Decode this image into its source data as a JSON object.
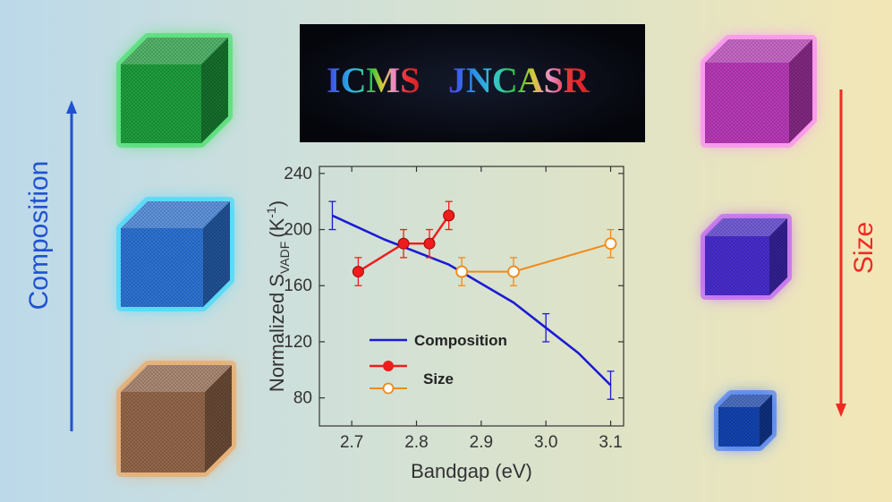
{
  "banner": {
    "text_left": "ICMS",
    "text_right": "JNCASR"
  },
  "side_labels": {
    "left": "Composition",
    "right": "Size"
  },
  "cube_colors": {
    "left": [
      "#1fa540",
      "#2f78dd",
      "#9a6b4e"
    ],
    "right": [
      "#c13cc0",
      "#4c2fd6",
      "#1446b8"
    ],
    "left_glow": [
      "#35e05a",
      "#30d8ff",
      "#f0a050"
    ],
    "right_glow": [
      "#ff7cff",
      "#b84cff",
      "#2b6cff"
    ]
  },
  "colors": {
    "composition": "#1b1bd4",
    "size": "#ee1c1c",
    "size_gap": "#f08a1c",
    "left_arrow": "#1f52d0",
    "right_arrow": "#ee2b22"
  },
  "chart_data": {
    "type": "line",
    "xlabel": "Bandgap (eV)",
    "ylabel_main": "Normalized S",
    "ylabel_sub": "VADF",
    "ylabel_unit": "(K",
    "ylabel_sup": "-1",
    "ylabel_close": ")",
    "xlim": [
      2.65,
      3.12
    ],
    "ylim": [
      60,
      245
    ],
    "xticks": [
      2.7,
      2.8,
      2.9,
      3.0,
      3.1
    ],
    "xtick_labels": [
      "2.7",
      "2.8",
      "2.9",
      "3.0",
      "3.1"
    ],
    "yticks": [
      80,
      120,
      160,
      200,
      240
    ],
    "ytick_labels": [
      "80",
      "120",
      "160",
      "200",
      "240"
    ],
    "legend_placement": "bottom-left",
    "series": [
      {
        "name": "Composition",
        "style": "smooth-line",
        "x": [
          2.67,
          2.75,
          2.85,
          2.95,
          3.0,
          3.05,
          3.1
        ],
        "y": [
          210,
          193,
          175,
          148,
          130,
          112,
          89
        ],
        "errorbars": [
          {
            "x": 2.67,
            "y": 210,
            "err": 10
          },
          {
            "x": 3.0,
            "y": 130,
            "err": 10
          },
          {
            "x": 3.1,
            "y": 89,
            "err": 10
          }
        ]
      },
      {
        "name": "Size",
        "style": "filled-markers",
        "x": [
          2.71,
          2.78,
          2.82,
          2.85
        ],
        "y": [
          170,
          190,
          190,
          210
        ],
        "err": [
          10,
          10,
          10,
          10
        ]
      },
      {
        "name": "",
        "style": "open-markers",
        "x": [
          2.87,
          2.95,
          3.1
        ],
        "y": [
          170,
          170,
          190
        ],
        "err": [
          10,
          10,
          10
        ]
      }
    ]
  }
}
